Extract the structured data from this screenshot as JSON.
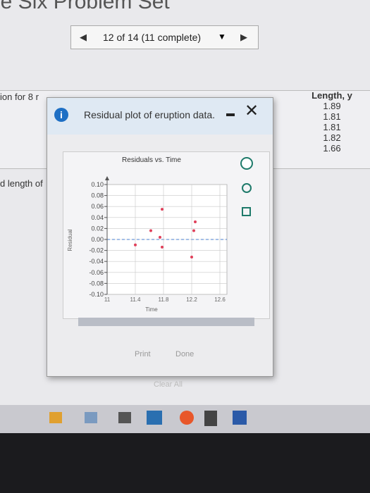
{
  "header": {
    "title": "le Six Problem Set",
    "nav": "12 of 14 (11 complete)"
  },
  "left_text": [
    "ion for 8 r",
    "d length of"
  ],
  "table": {
    "header": "Length, y",
    "rows": [
      "1.89",
      "1.81",
      "1.81",
      "1.82",
      "1.66"
    ]
  },
  "dialog": {
    "title": "Residual plot of eruption data.",
    "buttons": [
      "Print",
      "Done"
    ]
  },
  "footer": {
    "button": "Clear All"
  },
  "chart_data": {
    "type": "scatter",
    "title": "Residuals vs. Time",
    "x_label": "Time",
    "y_label": "Residual",
    "x": [
      11.78,
      12.25,
      11.62,
      12.23,
      11.75,
      11.4,
      11.78,
      12.2
    ],
    "values": [
      0.055,
      0.032,
      0.016,
      0.016,
      0.004,
      -0.01,
      -0.014,
      -0.032
    ],
    "color": "#e0405a",
    "xlim": [
      11,
      12.7
    ],
    "xticks": [
      11,
      11.4,
      11.8,
      12.2,
      12.6
    ],
    "ylim": [
      -0.1,
      0.1
    ],
    "yticks": [
      {
        "value": 0.1,
        "label": "0.10"
      },
      {
        "value": 0.08,
        "label": "0.08"
      },
      {
        "value": 0.06,
        "label": "0.06"
      },
      {
        "value": 0.04,
        "label": "0.04"
      },
      {
        "value": 0.02,
        "label": "0.02"
      },
      {
        "value": 0,
        "label": "0.00"
      },
      {
        "value": -0.02,
        "label": "-0.02"
      },
      {
        "value": -0.04,
        "label": "-0.04"
      },
      {
        "value": -0.06,
        "label": "-0.06"
      },
      {
        "value": -0.08,
        "label": "-0.08"
      },
      {
        "value": -0.1,
        "label": "-0.10"
      }
    ],
    "grid": true
  }
}
